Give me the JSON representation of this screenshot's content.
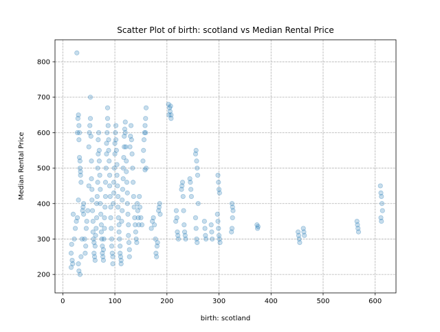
{
  "chart_data": {
    "type": "scatter",
    "title": "Scatter Plot of birth: scotland vs Median Rental Price",
    "xlabel": "birth: scotland",
    "ylabel": "Median Rental Price",
    "xlim": [
      -15,
      640
    ],
    "ylim": [
      148,
      862
    ],
    "xticks": [
      0,
      100,
      200,
      300,
      400,
      500,
      600
    ],
    "yticks": [
      200,
      300,
      400,
      500,
      600,
      700,
      800
    ],
    "grid": true,
    "point_color": "#1f77b4",
    "point_alpha": 0.25,
    "series": [
      {
        "points": [
          [
            27,
            825
          ],
          [
            16,
            220
          ],
          [
            16,
            260
          ],
          [
            17,
            285
          ],
          [
            18,
            240
          ],
          [
            19,
            230
          ],
          [
            20,
            370
          ],
          [
            22,
            300
          ],
          [
            24,
            330
          ],
          [
            26,
            350
          ],
          [
            28,
            360
          ],
          [
            28,
            600
          ],
          [
            29,
            640
          ],
          [
            30,
            650
          ],
          [
            31,
            620
          ],
          [
            31,
            580
          ],
          [
            32,
            600
          ],
          [
            32,
            530
          ],
          [
            33,
            520
          ],
          [
            33,
            500
          ],
          [
            34,
            490
          ],
          [
            34,
            480
          ],
          [
            35,
            460
          ],
          [
            30,
            410
          ],
          [
            30,
            230
          ],
          [
            31,
            210
          ],
          [
            33,
            200
          ],
          [
            35,
            250
          ],
          [
            37,
            300
          ],
          [
            38,
            380
          ],
          [
            39,
            390
          ],
          [
            40,
            400
          ],
          [
            40,
            370
          ],
          [
            42,
            300
          ],
          [
            43,
            260
          ],
          [
            44,
            280
          ],
          [
            45,
            330
          ],
          [
            46,
            350
          ],
          [
            48,
            380
          ],
          [
            50,
            450
          ],
          [
            50,
            560
          ],
          [
            51,
            600
          ],
          [
            52,
            620
          ],
          [
            53,
            640
          ],
          [
            53,
            700
          ],
          [
            54,
            590
          ],
          [
            55,
            520
          ],
          [
            55,
            470
          ],
          [
            56,
            440
          ],
          [
            56,
            410
          ],
          [
            57,
            380
          ],
          [
            58,
            350
          ],
          [
            58,
            320
          ],
          [
            59,
            300
          ],
          [
            60,
            290
          ],
          [
            60,
            260
          ],
          [
            61,
            250
          ],
          [
            62,
            240
          ],
          [
            62,
            280
          ],
          [
            63,
            310
          ],
          [
            64,
            330
          ],
          [
            65,
            360
          ],
          [
            65,
            400
          ],
          [
            66,
            420
          ],
          [
            67,
            460
          ],
          [
            67,
            500
          ],
          [
            68,
            540
          ],
          [
            68,
            580
          ],
          [
            69,
            600
          ],
          [
            70,
            550
          ],
          [
            70,
            520
          ],
          [
            71,
            480
          ],
          [
            72,
            440
          ],
          [
            72,
            400
          ],
          [
            73,
            370
          ],
          [
            74,
            340
          ],
          [
            74,
            320
          ],
          [
            75,
            300
          ],
          [
            76,
            280
          ],
          [
            76,
            260
          ],
          [
            77,
            250
          ],
          [
            78,
            240
          ],
          [
            78,
            270
          ],
          [
            79,
            300
          ],
          [
            80,
            330
          ],
          [
            80,
            360
          ],
          [
            81,
            390
          ],
          [
            82,
            420
          ],
          [
            82,
            460
          ],
          [
            83,
            500
          ],
          [
            84,
            540
          ],
          [
            84,
            570
          ],
          [
            85,
            600
          ],
          [
            86,
            640
          ],
          [
            86,
            670
          ],
          [
            87,
            620
          ],
          [
            88,
            580
          ],
          [
            88,
            550
          ],
          [
            89,
            520
          ],
          [
            90,
            480
          ],
          [
            90,
            450
          ],
          [
            91,
            420
          ],
          [
            92,
            390
          ],
          [
            92,
            360
          ],
          [
            93,
            330
          ],
          [
            94,
            300
          ],
          [
            94,
            280
          ],
          [
            95,
            260
          ],
          [
            96,
            250
          ],
          [
            96,
            230
          ],
          [
            97,
            400
          ],
          [
            98,
            430
          ],
          [
            98,
            460
          ],
          [
            99,
            500
          ],
          [
            100,
            540
          ],
          [
            100,
            570
          ],
          [
            101,
            600
          ],
          [
            102,
            620
          ],
          [
            102,
            580
          ],
          [
            103,
            550
          ],
          [
            104,
            510
          ],
          [
            104,
            480
          ],
          [
            105,
            450
          ],
          [
            106,
            420
          ],
          [
            106,
            390
          ],
          [
            107,
            360
          ],
          [
            108,
            340
          ],
          [
            108,
            320
          ],
          [
            109,
            300
          ],
          [
            110,
            280
          ],
          [
            110,
            260
          ],
          [
            111,
            250
          ],
          [
            112,
            240
          ],
          [
            112,
            230
          ],
          [
            113,
            350
          ],
          [
            114,
            380
          ],
          [
            114,
            410
          ],
          [
            115,
            440
          ],
          [
            116,
            470
          ],
          [
            116,
            500
          ],
          [
            117,
            530
          ],
          [
            118,
            560
          ],
          [
            118,
            590
          ],
          [
            119,
            610
          ],
          [
            120,
            630
          ],
          [
            120,
            600
          ],
          [
            121,
            560
          ],
          [
            122,
            520
          ],
          [
            122,
            490
          ],
          [
            123,
            460
          ],
          [
            124,
            430
          ],
          [
            124,
            400
          ],
          [
            125,
            370
          ],
          [
            126,
            340
          ],
          [
            126,
            310
          ],
          [
            127,
            290
          ],
          [
            128,
            270
          ],
          [
            128,
            250
          ],
          [
            129,
            560
          ],
          [
            130,
            590
          ],
          [
            131,
            620
          ],
          [
            132,
            580
          ],
          [
            133,
            540
          ],
          [
            134,
            500
          ],
          [
            135,
            460
          ],
          [
            136,
            420
          ],
          [
            137,
            390
          ],
          [
            138,
            360
          ],
          [
            139,
            340
          ],
          [
            140,
            320
          ],
          [
            141,
            300
          ],
          [
            142,
            290
          ],
          [
            143,
            400
          ],
          [
            144,
            380
          ],
          [
            145,
            360
          ],
          [
            146,
            340
          ],
          [
            147,
            420
          ],
          [
            148,
            390
          ],
          [
            150,
            360
          ],
          [
            152,
            340
          ],
          [
            154,
            520
          ],
          [
            155,
            550
          ],
          [
            156,
            580
          ],
          [
            157,
            600
          ],
          [
            158,
            620
          ],
          [
            159,
            640
          ],
          [
            160,
            670
          ],
          [
            160,
            500
          ],
          [
            158,
            495
          ],
          [
            159,
            600
          ],
          [
            170,
            330
          ],
          [
            172,
            350
          ],
          [
            174,
            360
          ],
          [
            176,
            340
          ],
          [
            178,
            300
          ],
          [
            179,
            260
          ],
          [
            180,
            250
          ],
          [
            181,
            280
          ],
          [
            182,
            290
          ],
          [
            184,
            380
          ],
          [
            185,
            390
          ],
          [
            186,
            400
          ],
          [
            187,
            370
          ],
          [
            203,
            680
          ],
          [
            204,
            650
          ],
          [
            205,
            670
          ],
          [
            206,
            660
          ],
          [
            207,
            675
          ],
          [
            208,
            650
          ],
          [
            208,
            640
          ],
          [
            217,
            350
          ],
          [
            218,
            380
          ],
          [
            219,
            360
          ],
          [
            220,
            320
          ],
          [
            221,
            310
          ],
          [
            222,
            300
          ],
          [
            228,
            440
          ],
          [
            229,
            450
          ],
          [
            230,
            460
          ],
          [
            231,
            420
          ],
          [
            232,
            380
          ],
          [
            233,
            340
          ],
          [
            234,
            320
          ],
          [
            235,
            310
          ],
          [
            236,
            300
          ],
          [
            244,
            470
          ],
          [
            245,
            460
          ],
          [
            246,
            440
          ],
          [
            247,
            420
          ],
          [
            255,
            540
          ],
          [
            256,
            550
          ],
          [
            257,
            520
          ],
          [
            258,
            500
          ],
          [
            259,
            480
          ],
          [
            260,
            400
          ],
          [
            255,
            360
          ],
          [
            256,
            330
          ],
          [
            257,
            300
          ],
          [
            258,
            290
          ],
          [
            272,
            350
          ],
          [
            273,
            330
          ],
          [
            274,
            310
          ],
          [
            275,
            300
          ],
          [
            285,
            340
          ],
          [
            286,
            320
          ],
          [
            287,
            300
          ],
          [
            298,
            480
          ],
          [
            299,
            460
          ],
          [
            300,
            440
          ],
          [
            301,
            430
          ],
          [
            297,
            370
          ],
          [
            298,
            350
          ],
          [
            299,
            330
          ],
          [
            300,
            310
          ],
          [
            301,
            300
          ],
          [
            302,
            290
          ],
          [
            325,
            400
          ],
          [
            326,
            390
          ],
          [
            327,
            380
          ],
          [
            326,
            360
          ],
          [
            325,
            330
          ],
          [
            324,
            320
          ],
          [
            373,
            340
          ],
          [
            374,
            330
          ],
          [
            375,
            335
          ],
          [
            452,
            320
          ],
          [
            453,
            310
          ],
          [
            454,
            300
          ],
          [
            455,
            290
          ],
          [
            462,
            330
          ],
          [
            463,
            320
          ],
          [
            464,
            310
          ],
          [
            565,
            350
          ],
          [
            566,
            340
          ],
          [
            567,
            330
          ],
          [
            568,
            320
          ],
          [
            610,
            450
          ],
          [
            611,
            430
          ],
          [
            612,
            420
          ],
          [
            613,
            400
          ],
          [
            614,
            380
          ],
          [
            611,
            360
          ],
          [
            612,
            350
          ]
        ]
      }
    ]
  }
}
